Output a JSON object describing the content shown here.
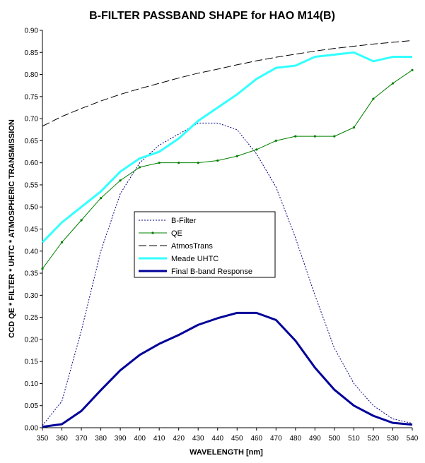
{
  "chart_data": {
    "type": "line",
    "title": "B-FILTER PASSBAND SHAPE for HAO M14(B)",
    "xlabel": "WAVELENGTH [nm]",
    "ylabel": "CCD QE * FILTER * UHTC * ATMOSPHERIC TRANSMISSION",
    "xlim": [
      350,
      540
    ],
    "ylim": [
      0,
      0.9
    ],
    "grid": false,
    "x": [
      350,
      360,
      370,
      380,
      390,
      400,
      410,
      420,
      430,
      440,
      450,
      460,
      470,
      480,
      490,
      500,
      510,
      520,
      530,
      540
    ],
    "x_ticks": [
      "350",
      "360",
      "370",
      "380",
      "390",
      "400",
      "410",
      "420",
      "430",
      "440",
      "450",
      "460",
      "470",
      "480",
      "490",
      "500",
      "510",
      "520",
      "530",
      "540"
    ],
    "y_ticks": [
      "0.00",
      "0.05",
      "0.10",
      "0.15",
      "0.20",
      "0.25",
      "0.30",
      "0.35",
      "0.40",
      "0.45",
      "0.50",
      "0.55",
      "0.60",
      "0.65",
      "0.70",
      "0.75",
      "0.80",
      "0.85",
      "0.90"
    ],
    "legend_position": "center",
    "series": [
      {
        "name": "B-Filter",
        "color": "#000080",
        "style": "dotted",
        "values": [
          0.005,
          0.06,
          0.22,
          0.4,
          0.53,
          0.6,
          0.64,
          0.665,
          0.69,
          0.69,
          0.675,
          0.62,
          0.545,
          0.43,
          0.3,
          0.18,
          0.1,
          0.05,
          0.02,
          0.01
        ]
      },
      {
        "name": "QE",
        "color": "#008000",
        "style": "solid-markers",
        "values": [
          0.36,
          0.42,
          0.47,
          0.52,
          0.56,
          0.59,
          0.6,
          0.6,
          0.6,
          0.605,
          0.615,
          0.63,
          0.65,
          0.66,
          0.66,
          0.66,
          0.68,
          0.745,
          0.78,
          0.81
        ]
      },
      {
        "name": "AtmosTrans",
        "color": "#000000",
        "style": "long-dash",
        "values": [
          0.683,
          0.705,
          0.723,
          0.74,
          0.755,
          0.768,
          0.78,
          0.792,
          0.803,
          0.812,
          0.822,
          0.831,
          0.839,
          0.846,
          0.853,
          0.859,
          0.864,
          0.869,
          0.873,
          0.877
        ]
      },
      {
        "name": "Meade UHTC",
        "color": "#33ffff",
        "style": "thick",
        "values": [
          0.42,
          0.465,
          0.5,
          0.535,
          0.58,
          0.61,
          0.625,
          0.655,
          0.695,
          0.725,
          0.755,
          0.79,
          0.815,
          0.82,
          0.84,
          0.845,
          0.85,
          0.83,
          0.84,
          0.84
        ]
      },
      {
        "name": "Final B-band Response",
        "color": "#000099",
        "style": "thick",
        "values": [
          0.002,
          0.008,
          0.038,
          0.085,
          0.13,
          0.165,
          0.19,
          0.21,
          0.233,
          0.248,
          0.26,
          0.26,
          0.244,
          0.197,
          0.136,
          0.086,
          0.05,
          0.027,
          0.011,
          0.007
        ]
      }
    ]
  }
}
